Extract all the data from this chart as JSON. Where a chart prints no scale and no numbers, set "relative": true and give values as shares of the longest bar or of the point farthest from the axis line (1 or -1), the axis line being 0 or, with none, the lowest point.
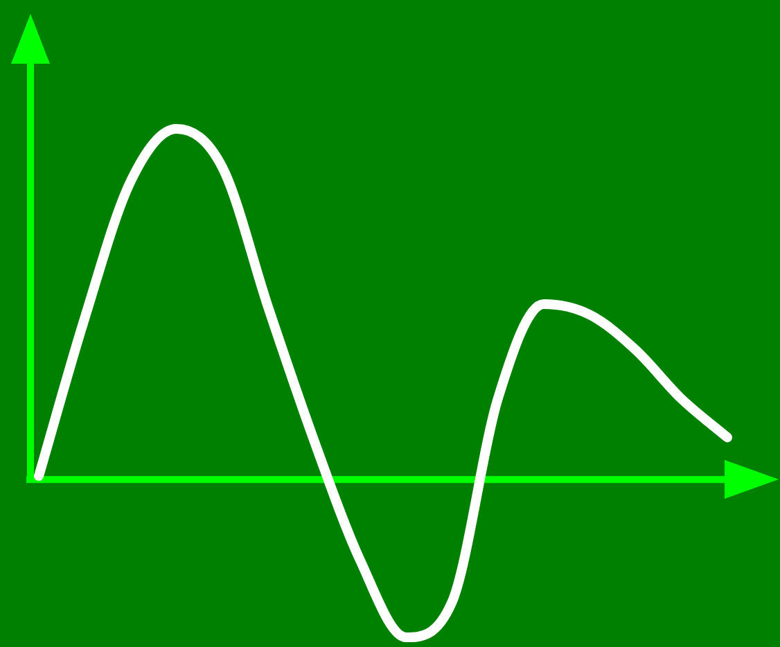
{
  "chart_data": {
    "type": "line",
    "relative": true,
    "categories": [
      null,
      null,
      null,
      null,
      null,
      null,
      null,
      null,
      null,
      null,
      null,
      null,
      null,
      null,
      null,
      null
    ],
    "series": [
      {
        "color": "#ffffff",
        "values": [
          0.01,
          0.46,
          0.85,
          1,
          0.89,
          0.49,
          0.11,
          -0.23,
          -0.45,
          -0.35,
          0.23,
          0.5,
          0.47,
          0.37,
          0.23,
          0.12
        ]
      }
    ],
    "ref_lines": [
      {
        "axis": "y",
        "value": 0,
        "color": "#00ff00"
      }
    ],
    "legend": false,
    "marker": "none",
    "line_style": "solid"
  }
}
